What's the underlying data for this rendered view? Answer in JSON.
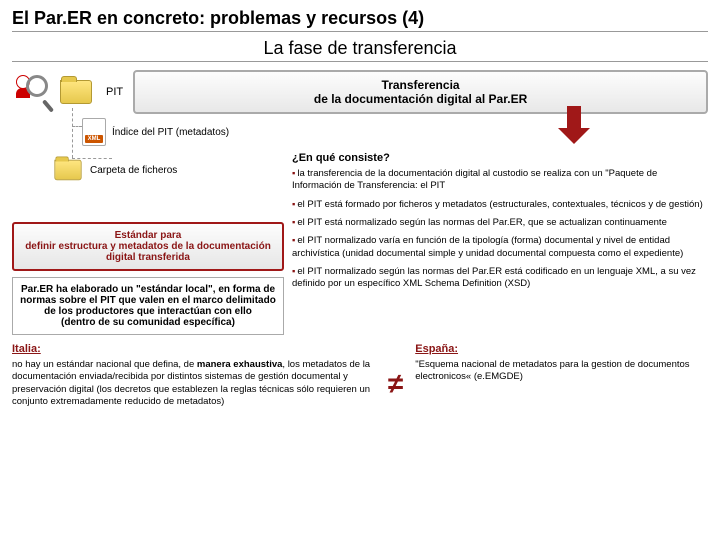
{
  "title": "El Par.ER en concreto: problemas y recursos  (4)",
  "subtitle": "La fase de transferencia",
  "pit_label": "PIT",
  "transfer_box": "Transferencia\nde la documentación digital al Par.ER",
  "xml_label": "Índice del PIT (metadatos)",
  "folder2_label": "Carpeta de ficheros",
  "question": "¿En qué consiste?",
  "bullets": [
    "la transferencia de la documentación digital al custodio se realiza con un \"Paquete de Información de Transferencia: el PIT",
    "el PIT está formado por ficheros y metadatos (estructurales, contextuales, técnicos y de gestión)",
    "el PIT está normalizado según las normas del Par.ER, que se actualizan continuamente",
    "el PIT normalizado varía en función de la tipología (forma) documental y nivel de entidad archivística (unidad documental simple y unidad documental compuesta como el expediente)",
    "el PIT normalizado según las normas del Par.ER está codificado en un lenguaje XML, a su vez definido por un específico XML Schema Definition (XSD)"
  ],
  "red_box": {
    "line1": "Estándar para",
    "line2": "definir estructura y metadatos de la documentación digital transferida"
  },
  "plain_box": "Par.ER ha elaborado un \"estándar local\", en forma de normas sobre el PIT que valen en el marco delimitado de los productores que interactúan con ello\n(dentro de su comunidad específica)",
  "italy": {
    "label": "Italia:",
    "text": "no hay un estándar nacional que defina, de manera exhaustiva, los metadatos de la documentación enviada/recibida por distintos sistemas de gestión documental y preservación digital (los decretos que establezen la reglas técnicas sólo requieren un conjunto extremadamente reducido de metadatos)"
  },
  "spain": {
    "label": "España:",
    "text": "\"Esquema nacional de metadatos para la gestion de documentos electronicos« (e.EMGDE)"
  },
  "colors": {
    "accent": "#8a1515"
  }
}
